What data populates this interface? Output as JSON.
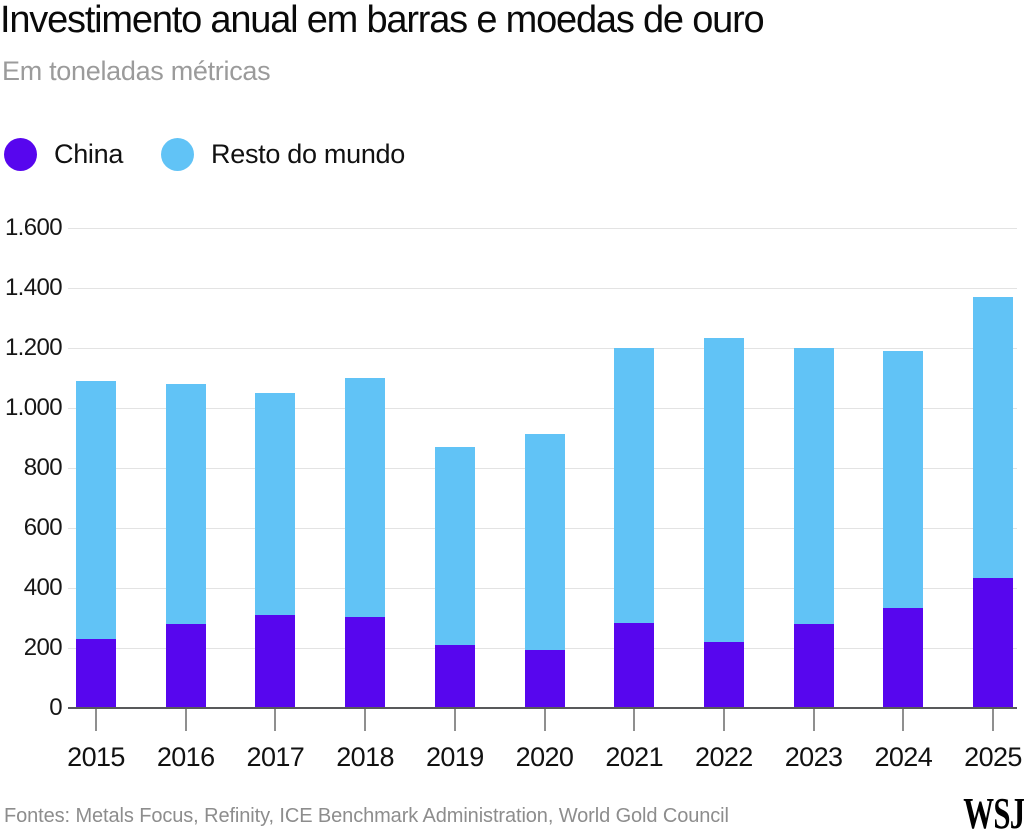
{
  "header": {
    "title": "Investimento anual em barras e moedas de ouro",
    "subtitle": "Em toneladas métricas"
  },
  "chart_data": {
    "type": "bar",
    "stacked": true,
    "title": "Investimento anual em barras e moedas de ouro",
    "subtitle": "Em toneladas métricas",
    "unit": "toneladas métricas",
    "categories": [
      "2015",
      "2016",
      "2017",
      "2018",
      "2019",
      "2020",
      "2021",
      "2022",
      "2023",
      "2024",
      "2025"
    ],
    "series": [
      {
        "name": "China",
        "color": "#5706ee",
        "values": [
          230,
          280,
          310,
          305,
          210,
          195,
          285,
          220,
          280,
          335,
          435
        ]
      },
      {
        "name": "Resto do mundo",
        "color": "#61c3f6",
        "values": [
          860,
          800,
          740,
          795,
          660,
          720,
          915,
          1015,
          920,
          855,
          935
        ]
      }
    ],
    "totals": [
      1090,
      1080,
      1050,
      1100,
      870,
      915,
      1200,
      1235,
      1200,
      1190,
      1370
    ],
    "xlabel": "",
    "ylabel": "",
    "ylim": [
      0,
      1600
    ],
    "y_tick_step": 200,
    "y_ticks": [
      "0",
      "200",
      "400",
      "600",
      "800",
      "1.000",
      "1.200",
      "1.400",
      "1.600"
    ],
    "grid": true,
    "legend_position": "top-left"
  },
  "footer": {
    "source": "Fontes: Metals Focus, Refinity, ICE Benchmark Administration, World Gold Council",
    "logo": "WSJ"
  }
}
